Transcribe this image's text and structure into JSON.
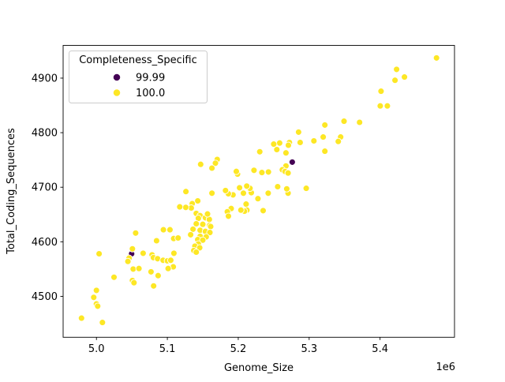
{
  "figure": {
    "background": "#ffffff"
  },
  "chart_data": {
    "type": "scatter",
    "title": "",
    "xlabel": "Genome_Size",
    "ylabel": "Total_Coding_Sequences",
    "x_offset_label": "1e6",
    "xlim": [
      4953000,
      5505000
    ],
    "ylim": [
      4425,
      4960
    ],
    "grid": false,
    "xticks": {
      "values": [
        5000000,
        5100000,
        5200000,
        5300000,
        5400000
      ],
      "labels": [
        "5.0",
        "5.1",
        "5.2",
        "5.3",
        "5.4"
      ]
    },
    "yticks": {
      "values": [
        4500,
        4600,
        4700,
        4800,
        4900
      ],
      "labels": [
        "4500",
        "4600",
        "4700",
        "4800",
        "4900"
      ]
    },
    "legend": {
      "title": "Completeness_Specific",
      "position": "upper left",
      "entries": [
        {
          "label": "99.99",
          "color": "#440154"
        },
        {
          "label": "100.0",
          "color": "#fde725"
        }
      ]
    },
    "marker": {
      "radius_px": 4,
      "edge_color": "#ffffff"
    },
    "series": [
      {
        "name": "99.99",
        "color": "#440154",
        "points": [
          [
            5276200,
            4746
          ],
          [
            5049600,
            4578
          ]
        ]
      },
      {
        "name": "100.0",
        "color": "#fde725",
        "points": [
          [
            5479600,
            4937
          ],
          [
            5434400,
            4902
          ],
          [
            5423300,
            4916
          ],
          [
            5421100,
            4896
          ],
          [
            5401400,
            4876
          ],
          [
            5400300,
            4849
          ],
          [
            5410300,
            4849
          ],
          [
            5371100,
            4819
          ],
          [
            5349200,
            4821
          ],
          [
            5322200,
            4814
          ],
          [
            5344400,
            4792
          ],
          [
            5341100,
            4784
          ],
          [
            5319800,
            4792
          ],
          [
            5322200,
            4766
          ],
          [
            5306700,
            4785
          ],
          [
            5287300,
            4782
          ],
          [
            5285100,
            4801
          ],
          [
            5272200,
            4782
          ],
          [
            5270700,
            4777
          ],
          [
            5258400,
            4781
          ],
          [
            5254400,
            4769
          ],
          [
            5250000,
            4779
          ],
          [
            5267300,
            4763
          ],
          [
            5230300,
            4765
          ],
          [
            5267300,
            4739
          ],
          [
            5262200,
            4732
          ],
          [
            5265900,
            4729
          ],
          [
            5270300,
            4726
          ],
          [
            5242600,
            4728
          ],
          [
            5233300,
            4727
          ],
          [
            5222200,
            4731
          ],
          [
            5198900,
            4724
          ],
          [
            5197300,
            4729
          ],
          [
            5170300,
            4751
          ],
          [
            5167800,
            4744
          ],
          [
            5162900,
            4735
          ],
          [
            5147000,
            4742
          ],
          [
            5295900,
            4698
          ],
          [
            5270300,
            4689
          ],
          [
            5268400,
            4697
          ],
          [
            5255600,
            4701
          ],
          [
            5242200,
            4689
          ],
          [
            5218400,
            4690
          ],
          [
            5216500,
            4698
          ],
          [
            5212000,
            4702
          ],
          [
            5207300,
            4689
          ],
          [
            5201800,
            4699
          ],
          [
            5192600,
            4686
          ],
          [
            5186000,
            4688
          ],
          [
            5182000,
            4694
          ],
          [
            5162900,
            4689
          ],
          [
            5126200,
            4692
          ],
          [
            5142900,
            4675
          ],
          [
            5135100,
            4670
          ],
          [
            5133700,
            4662
          ],
          [
            5125900,
            4663
          ],
          [
            5117500,
            4664
          ],
          [
            5140700,
            4652
          ],
          [
            5146200,
            4648
          ],
          [
            5143700,
            4643
          ],
          [
            5153700,
            4644
          ],
          [
            5159200,
            4641
          ],
          [
            5156700,
            4651
          ],
          [
            5190000,
            4661
          ],
          [
            5184600,
            4655
          ],
          [
            5186200,
            4647
          ],
          [
            5211100,
            4669
          ],
          [
            5212200,
            4658
          ],
          [
            5208700,
            4656
          ],
          [
            5203700,
            4658
          ],
          [
            5227800,
            4679
          ],
          [
            5235100,
            4657
          ],
          [
            5140700,
            4633
          ],
          [
            5150000,
            4632
          ],
          [
            5159600,
            4630
          ],
          [
            5161100,
            4628
          ],
          [
            5136200,
            4623
          ],
          [
            5146200,
            4621
          ],
          [
            5153700,
            4619
          ],
          [
            5160000,
            4617
          ],
          [
            5132900,
            4613
          ],
          [
            5146200,
            4610
          ],
          [
            5154800,
            4609
          ],
          [
            5142900,
            4604
          ],
          [
            5150000,
            4603
          ],
          [
            5143700,
            4596
          ],
          [
            5138900,
            4592
          ],
          [
            5145600,
            4589
          ],
          [
            5137300,
            4584
          ],
          [
            5140700,
            4581
          ],
          [
            5055300,
            4616
          ],
          [
            5094400,
            4622
          ],
          [
            5103700,
            4622
          ],
          [
            5084800,
            4602
          ],
          [
            5108900,
            4606
          ],
          [
            5115100,
            4607
          ],
          [
            5109200,
            4579
          ],
          [
            5050700,
            4587
          ],
          [
            5003700,
            4578
          ],
          [
            5065900,
            4579
          ],
          [
            5078400,
            4576
          ],
          [
            5080300,
            4571
          ],
          [
            5086200,
            4569
          ],
          [
            5094000,
            4566
          ],
          [
            5100000,
            4565
          ],
          [
            5104800,
            4566
          ],
          [
            5046000,
            4570
          ],
          [
            5044400,
            4564
          ],
          [
            5108400,
            4554
          ],
          [
            5101100,
            4551
          ],
          [
            5051800,
            4550
          ],
          [
            5060000,
            4551
          ],
          [
            5077000,
            4545
          ],
          [
            5087000,
            4538
          ],
          [
            5024800,
            4535
          ],
          [
            5050700,
            4529
          ],
          [
            5052900,
            4525
          ],
          [
            5080700,
            4519
          ],
          [
            5000000,
            4511
          ],
          [
            4996200,
            4498
          ],
          [
            5000000,
            4486
          ],
          [
            5001800,
            4482
          ],
          [
            4978900,
            4460
          ],
          [
            5008400,
            4452
          ]
        ]
      }
    ]
  }
}
